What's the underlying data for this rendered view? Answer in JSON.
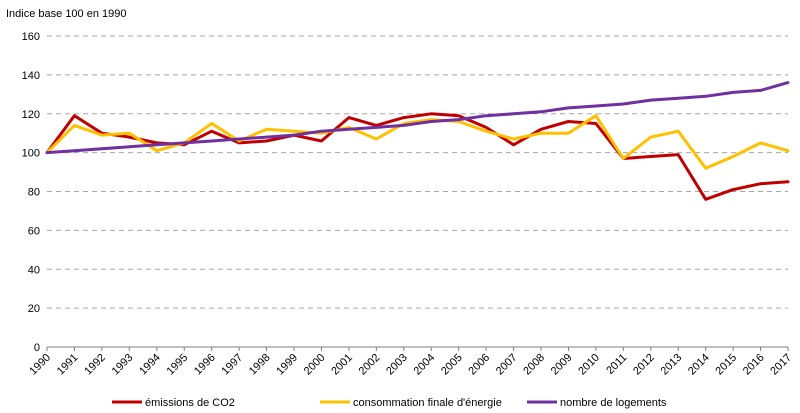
{
  "chart_data": {
    "type": "line",
    "title": "",
    "ylabel": "Indice base 100 en 1990",
    "xlabel": "",
    "ylim": [
      0,
      160
    ],
    "yticks": [
      0,
      20,
      40,
      60,
      80,
      100,
      120,
      140,
      160
    ],
    "grid": "horizontal-dashed",
    "legend_position": "bottom",
    "x": [
      "1990",
      "1991",
      "1992",
      "1993",
      "1994",
      "1995",
      "1996",
      "1997",
      "1998",
      "1999",
      "2000",
      "2001",
      "2002",
      "2003",
      "2004",
      "2005",
      "2006",
      "2007",
      "2008",
      "2009",
      "2010",
      "2011",
      "2012",
      "2013",
      "2014",
      "2015",
      "2016",
      "2017"
    ],
    "series": [
      {
        "name": "émissions de CO2",
        "color": "#c00000",
        "values": [
          100,
          119,
          110,
          108,
          105,
          104,
          111,
          105,
          106,
          109,
          106,
          118,
          114,
          118,
          120,
          119,
          113,
          104,
          112,
          116,
          115,
          97,
          98,
          99,
          76,
          81,
          84,
          85
        ]
      },
      {
        "name": "consommation finale d'énergie",
        "color": "#ffc000",
        "values": [
          100,
          114,
          109,
          110,
          101,
          105,
          115,
          106,
          112,
          111,
          110,
          113,
          107,
          115,
          117,
          116,
          111,
          107,
          110,
          110,
          119,
          97,
          108,
          111,
          92,
          98,
          105,
          101
        ]
      },
      {
        "name": "nombre de logements",
        "color": "#7030a0",
        "values": [
          100,
          101,
          102,
          103,
          104,
          105,
          106,
          107,
          108,
          109,
          111,
          112,
          113,
          114,
          116,
          117,
          119,
          120,
          121,
          123,
          124,
          125,
          127,
          128,
          129,
          131,
          132,
          136
        ]
      }
    ]
  }
}
